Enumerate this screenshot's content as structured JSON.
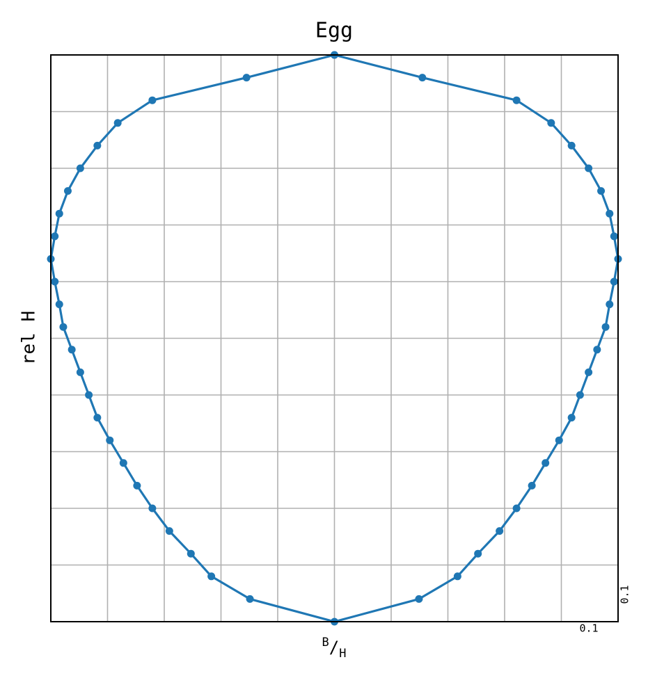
{
  "chart_data": {
    "type": "line",
    "title": "Egg",
    "ylabel": "rel H",
    "xlabel": [
      "B",
      "/",
      "H"
    ],
    "annotations": [
      "0.1",
      "0.1"
    ],
    "x": [
      0,
      0.155,
      0.321,
      0.382,
      0.418,
      0.448,
      0.47,
      0.485,
      0.493,
      0.5,
      0.493,
      0.485,
      0.478,
      0.463,
      0.448,
      0.433,
      0.418,
      0.396,
      0.372,
      0.348,
      0.321,
      0.291,
      0.253,
      0.217,
      0.149,
      0,
      -0.149,
      -0.217,
      -0.253,
      -0.291,
      -0.321,
      -0.348,
      -0.372,
      -0.396,
      -0.418,
      -0.433,
      -0.448,
      -0.463,
      -0.478,
      -0.485,
      -0.493,
      -0.5,
      -0.493,
      -0.485,
      -0.47,
      -0.448,
      -0.418,
      -0.382,
      -0.321,
      -0.155,
      0
    ],
    "series": [
      {
        "color": "#1f77b4",
        "values": [
          1,
          0.96,
          0.92,
          0.88,
          0.84,
          0.8,
          0.76,
          0.72,
          0.68,
          0.64,
          0.6,
          0.56,
          0.52,
          0.48,
          0.44,
          0.4,
          0.36,
          0.32,
          0.28,
          0.24,
          0.2,
          0.16,
          0.12,
          0.08,
          0.04,
          0,
          0.04,
          0.08,
          0.12,
          0.16,
          0.2,
          0.24,
          0.28,
          0.32,
          0.36,
          0.4,
          0.44,
          0.48,
          0.52,
          0.56,
          0.6,
          0.64,
          0.68,
          0.72,
          0.76,
          0.8,
          0.84,
          0.88,
          0.92,
          0.96,
          1
        ]
      }
    ],
    "xlim": [
      -0.5,
      0.5
    ],
    "ylim": [
      0,
      1
    ],
    "xticks": [
      -0.4,
      -0.3,
      -0.2,
      -0.1,
      0,
      0.1,
      0.2,
      0.3,
      0.4
    ],
    "yticks": [
      0.1,
      0.2,
      0.3,
      0.4,
      0.5,
      0.6,
      0.7,
      0.8,
      0.9
    ],
    "grid": true,
    "tick_labels": false
  }
}
